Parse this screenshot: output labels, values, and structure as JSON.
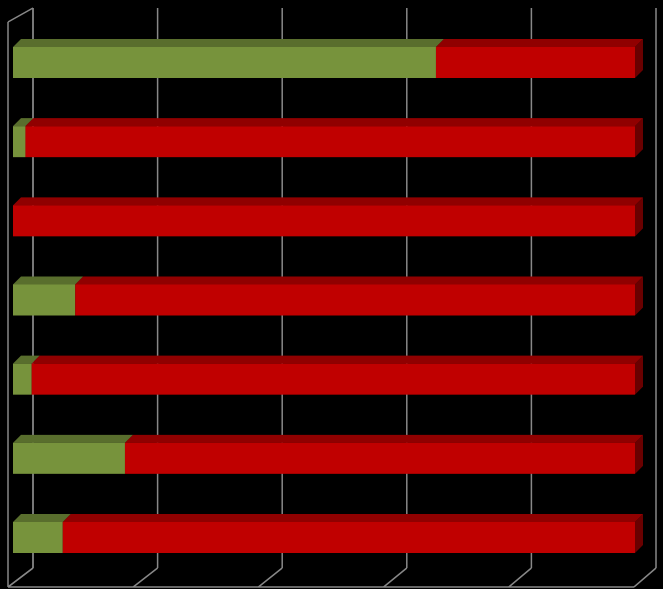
{
  "chart_data": {
    "type": "bar",
    "orientation": "horizontal",
    "stacked": true,
    "three_d": true,
    "categories": [
      null,
      null,
      null,
      null,
      null,
      null,
      null
    ],
    "series": [
      {
        "color": "#77933c",
        "values": [
          68,
          2,
          0,
          10,
          3,
          18,
          8
        ]
      },
      {
        "color": "#c00000",
        "values": [
          32,
          98,
          100,
          90,
          97,
          82,
          92
        ]
      }
    ],
    "xlim": [
      0,
      100
    ],
    "xticks": [
      0,
      20,
      40,
      60,
      80,
      100
    ],
    "grid": true
  }
}
